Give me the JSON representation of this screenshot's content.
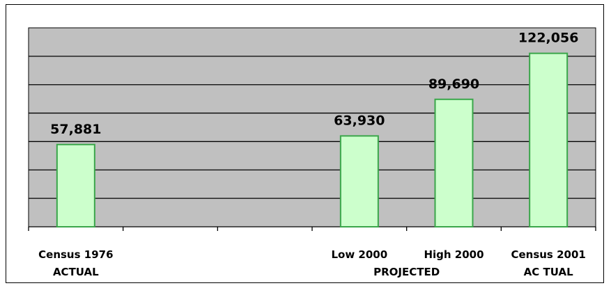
{
  "chart_data": {
    "type": "bar",
    "categories": [
      "Census 1976",
      "",
      "",
      "Low 2000",
      "High 2000",
      "Census 2001"
    ],
    "values": [
      57881,
      null,
      null,
      63930,
      89690,
      122056
    ],
    "value_labels": [
      "57,881",
      "",
      "",
      "63,930",
      "89,690",
      "122,056"
    ],
    "group_labels": [
      {
        "label": "ACTUAL",
        "category_index": 0
      },
      {
        "label": "PROJECTED",
        "category_index": 3.5
      },
      {
        "label": "AC TUAL",
        "category_index": 5
      }
    ],
    "ylim": [
      0,
      140000
    ],
    "grid": true,
    "legend": "none",
    "colors": {
      "plot_bg": "#c0c0c0",
      "bar_fill": "#ccffcc",
      "bar_stroke": "#3aa64a",
      "gridline": "#000000"
    }
  }
}
